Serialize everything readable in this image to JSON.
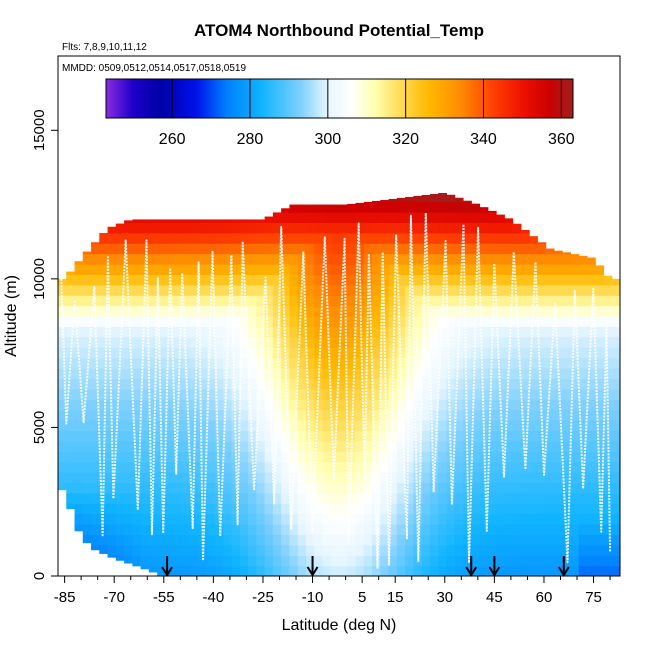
{
  "chart_data": {
    "type": "heatmap",
    "title": "ATOM4 Northbound Potential_Temp",
    "annotations": {
      "flights": "Flts: 7,8,9,10,11,12",
      "dates": "MMDD: 0509,0512,0514,0517,0518,0519"
    },
    "xlabel": "Latitude (deg N)",
    "ylabel": "Altitude (m)",
    "xlim": [
      -87,
      83
    ],
    "ylim": [
      0,
      17500
    ],
    "x_ticks": [
      -85,
      -70,
      -55,
      -40,
      -25,
      -10,
      5,
      15,
      30,
      45,
      60,
      75
    ],
    "x_tick_labels": [
      "-85",
      "-70",
      "-55",
      "-40",
      "-25",
      "-10",
      "5",
      "15",
      "30",
      "45",
      "60",
      "75"
    ],
    "x_minor_ticks": [
      -80,
      -75,
      -65,
      -60,
      -50,
      -45,
      -35,
      -30,
      -20,
      -15,
      -5,
      0,
      10,
      20,
      25,
      35,
      40,
      50,
      55,
      65,
      70,
      80
    ],
    "y_ticks": [
      0,
      5000,
      10000,
      15000
    ],
    "y_tick_labels": [
      "0",
      "5000",
      "10000",
      "15000"
    ],
    "colorbar": {
      "range": [
        243,
        363
      ],
      "ticks": [
        260,
        280,
        300,
        320,
        340,
        360
      ],
      "tick_labels": [
        "260",
        "280",
        "300",
        "320",
        "340",
        "360"
      ],
      "color_stops": [
        {
          "value": 243,
          "color": "#8a2be2"
        },
        {
          "value": 250,
          "color": "#1c00c8"
        },
        {
          "value": 257,
          "color": "#0000a8"
        },
        {
          "value": 266,
          "color": "#0010e8"
        },
        {
          "value": 274,
          "color": "#0080ff"
        },
        {
          "value": 283,
          "color": "#10b4ff"
        },
        {
          "value": 293,
          "color": "#7fd0ff"
        },
        {
          "value": 300,
          "color": "#e6f6ff"
        },
        {
          "value": 306,
          "color": "#ffffff"
        },
        {
          "value": 312,
          "color": "#ffffb0"
        },
        {
          "value": 318,
          "color": "#ffe060"
        },
        {
          "value": 326,
          "color": "#ffb800"
        },
        {
          "value": 334,
          "color": "#ff8c00"
        },
        {
          "value": 342,
          "color": "#ff4400"
        },
        {
          "value": 350,
          "color": "#ee1100"
        },
        {
          "value": 357,
          "color": "#cc0000"
        },
        {
          "value": 363,
          "color": "#a02020"
        }
      ]
    },
    "surface_markers_lat": [
      -54,
      -10,
      38,
      45,
      66
    ],
    "profile_ceiling_m": [
      {
        "lat": -85,
        "alt": 10000
      },
      {
        "lat": -80,
        "alt": 10700
      },
      {
        "lat": -72,
        "alt": 11700
      },
      {
        "lat": -65,
        "alt": 12000
      },
      {
        "lat": -55,
        "alt": 12000
      },
      {
        "lat": -40,
        "alt": 12000
      },
      {
        "lat": -25,
        "alt": 12000
      },
      {
        "lat": -16,
        "alt": 12500
      },
      {
        "lat": 0,
        "alt": 12500
      },
      {
        "lat": 30,
        "alt": 12900
      },
      {
        "lat": 40,
        "alt": 12500
      },
      {
        "lat": 50,
        "alt": 12000
      },
      {
        "lat": 62,
        "alt": 11000
      },
      {
        "lat": 75,
        "alt": 10700
      },
      {
        "lat": 80,
        "alt": 10000
      }
    ],
    "profile_floor_m": [
      {
        "lat": -87,
        "alt": 3200
      },
      {
        "lat": -84,
        "alt": 2500
      },
      {
        "lat": -80,
        "alt": 1300
      },
      {
        "lat": -76,
        "alt": 900
      },
      {
        "lat": -70,
        "alt": 600
      },
      {
        "lat": -62,
        "alt": 300
      },
      {
        "lat": -55,
        "alt": 0
      },
      {
        "lat": 80,
        "alt": 0
      }
    ],
    "field_model": {
      "tropical_center_lat": -2,
      "tropical_half_width_deg": 28,
      "polar_surface_temp": 278,
      "tropical_surface_temp": 298,
      "lapse_polar_per_km": 2.6,
      "lapse_tropical_per_km": 4.0,
      "tropopause_polar_m": 8200,
      "tropopause_tropical_m": 11500,
      "stratospheric_gradient_per_km": 14
    }
  }
}
